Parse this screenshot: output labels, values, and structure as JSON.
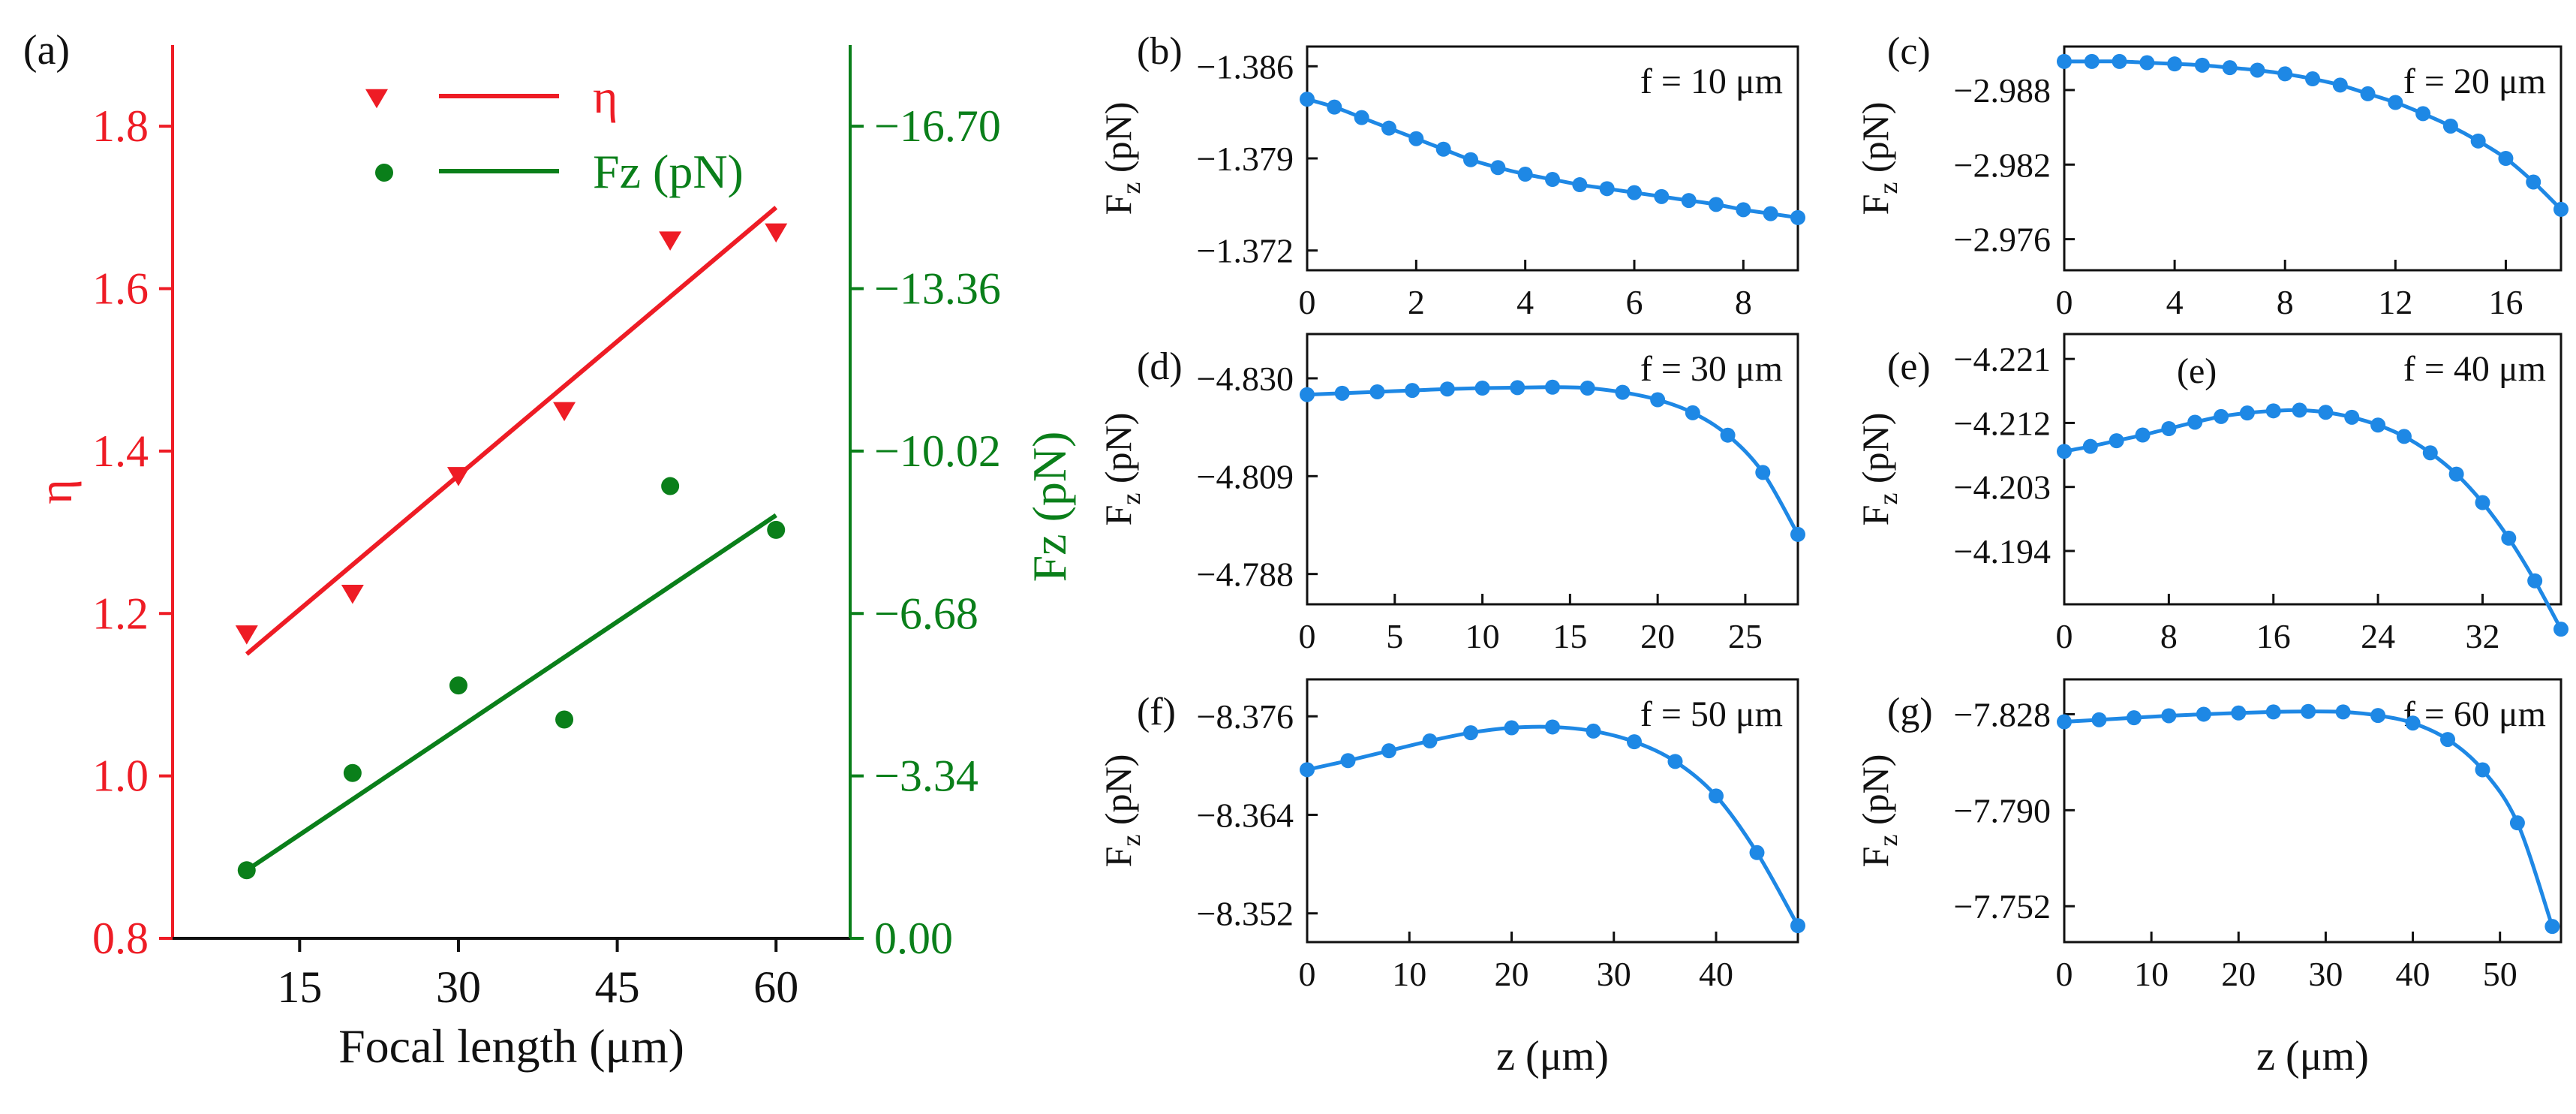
{
  "colors": {
    "red": "#ee1c25",
    "green": "#0a7f1a",
    "blue": "#1e88e5",
    "black": "#111111"
  },
  "chart_data": [
    {
      "id": "a",
      "type": "scatter",
      "panel_label": "(a)",
      "xlabel": "Focal length (μm)",
      "ylabel_left": "η",
      "ylabel_right": "Fz (pN)",
      "xlim": [
        3,
        67
      ],
      "ylim_left": [
        0.8,
        1.9
      ],
      "ylim_right": [
        0,
        18.37
      ],
      "xticks": [
        15,
        30,
        45,
        60
      ],
      "yticks_left": [
        0.8,
        1.0,
        1.2,
        1.4,
        1.6,
        1.8
      ],
      "yticks_left_labels": [
        "0.8",
        "1.0",
        "1.2",
        "1.4",
        "1.6",
        "1.8"
      ],
      "yticks_right": [
        0,
        3.34,
        6.68,
        10.02,
        13.36,
        16.7
      ],
      "yticks_right_labels": [
        "0.00",
        "-3.34",
        "-6.68",
        "-10.02",
        "-13.36",
        "-16.70"
      ],
      "series": [
        {
          "name": "η",
          "axis": "left",
          "marker": "triangle-down",
          "color": "red",
          "x": [
            10,
            20,
            30,
            40,
            50,
            60
          ],
          "y": [
            1.175,
            1.225,
            1.37,
            1.45,
            1.66,
            1.67
          ],
          "fit": {
            "x": [
              10,
              60
            ],
            "y": [
              1.15,
              1.7
            ]
          }
        },
        {
          "name": "Fz (pN)",
          "axis": "right",
          "marker": "circle",
          "color": "green",
          "x": [
            10,
            20,
            30,
            40,
            50,
            60
          ],
          "y": [
            1.4,
            3.4,
            5.2,
            4.5,
            9.3,
            8.4
          ],
          "fit": {
            "x": [
              10,
              60
            ],
            "y": [
              1.4,
              8.7
            ]
          }
        }
      ],
      "legend": [
        {
          "label": "η",
          "color": "red",
          "marker": "triangle-down"
        },
        {
          "label": "Fz (pN)",
          "color": "green",
          "marker": "circle"
        }
      ]
    },
    {
      "id": "b",
      "type": "line",
      "panel_label": "(b)",
      "annotation": "f = 10 μm",
      "xlim": [
        0,
        9
      ],
      "ylim": [
        -1.3875,
        -1.3705
      ],
      "xticks": [
        0,
        2,
        4,
        6,
        8
      ],
      "yticks": [
        -1.386,
        -1.379,
        -1.372
      ],
      "ytick_labels": [
        "-1.386",
        "-1.379",
        "-1.372"
      ],
      "ylabel": "Fz (pN)",
      "xlabel": "",
      "x": [
        0,
        0.5,
        1,
        1.5,
        2,
        2.5,
        3,
        3.5,
        4,
        4.5,
        5,
        5.5,
        6,
        6.5,
        7,
        7.5,
        8,
        8.5,
        9
      ],
      "y": [
        -1.3835,
        -1.3829,
        -1.3821,
        -1.3813,
        -1.3805,
        -1.3797,
        -1.3789,
        -1.3783,
        -1.3778,
        -1.3774,
        -1.377,
        -1.3767,
        -1.3764,
        -1.3761,
        -1.3758,
        -1.3755,
        -1.3751,
        -1.3748,
        -1.3745
      ]
    },
    {
      "id": "c",
      "type": "line",
      "panel_label": "(c)",
      "annotation": "f = 20 μm",
      "xlim": [
        0,
        18
      ],
      "ylim": [
        -2.9915,
        -2.9735
      ],
      "xticks": [
        0,
        4,
        8,
        12,
        16
      ],
      "yticks": [
        -2.988,
        -2.982,
        -2.976
      ],
      "ytick_labels": [
        "-2.988",
        "-2.982",
        "-2.976"
      ],
      "ylabel": "Fz (pN)",
      "xlabel": "",
      "x": [
        0,
        1,
        2,
        3,
        4,
        5,
        6,
        7,
        8,
        9,
        10,
        11,
        12,
        13,
        14,
        15,
        16,
        17,
        18
      ],
      "y": [
        -2.9903,
        -2.9903,
        -2.9903,
        -2.9902,
        -2.9901,
        -2.99,
        -2.9898,
        -2.9896,
        -2.9893,
        -2.9889,
        -2.9884,
        -2.9877,
        -2.987,
        -2.9861,
        -2.9851,
        -2.9839,
        -2.9825,
        -2.9806,
        -2.9784
      ]
    },
    {
      "id": "d",
      "type": "line",
      "panel_label": "(d)",
      "annotation": "f = 30 μm",
      "xlim": [
        0,
        28
      ],
      "ylim": [
        -4.8395,
        -4.7815
      ],
      "xticks": [
        0,
        5,
        10,
        15,
        20,
        25
      ],
      "yticks": [
        -4.83,
        -4.809,
        -4.788
      ],
      "ytick_labels": [
        "-4.830",
        "-4.809",
        "-4.788"
      ],
      "ylabel": "Fz (pN)",
      "xlabel": "",
      "x": [
        0,
        2,
        4,
        6,
        8,
        10,
        12,
        14,
        16,
        18,
        20,
        22,
        24,
        26,
        28
      ],
      "y": [
        -4.8265,
        -4.8268,
        -4.8271,
        -4.8274,
        -4.8277,
        -4.8279,
        -4.828,
        -4.8281,
        -4.8279,
        -4.827,
        -4.8254,
        -4.8226,
        -4.8178,
        -4.8098,
        -4.7965
      ]
    },
    {
      "id": "e",
      "type": "line",
      "panel_label": "(e)",
      "annotation": "f = 40 μm",
      "inner_label": "(e)",
      "xlim": [
        0,
        38
      ],
      "ylim": [
        -4.2245,
        -4.1865
      ],
      "xticks": [
        0,
        8,
        16,
        24,
        32
      ],
      "yticks": [
        -4.221,
        -4.212,
        -4.203,
        -4.194
      ],
      "ytick_labels": [
        "-4.221",
        "-4.212",
        "-4.203",
        "-4.194"
      ],
      "ylabel": "Fz (pN)",
      "xlabel": "",
      "x": [
        0,
        2,
        4,
        6,
        8,
        10,
        12,
        14,
        16,
        18,
        20,
        22,
        24,
        26,
        28,
        30,
        32,
        34,
        36,
        38
      ],
      "y": [
        -4.208,
        -4.2087,
        -4.2095,
        -4.2103,
        -4.2112,
        -4.2121,
        -4.2129,
        -4.2134,
        -4.2137,
        -4.2138,
        -4.2135,
        -4.2128,
        -4.2117,
        -4.2101,
        -4.2078,
        -4.2048,
        -4.2008,
        -4.1958,
        -4.1898,
        -4.183
      ]
    },
    {
      "id": "f",
      "type": "line",
      "panel_label": "(f)",
      "annotation": "f = 50 μm",
      "xlim": [
        0,
        48
      ],
      "ylim": [
        -8.3805,
        -8.3485
      ],
      "xticks": [
        0,
        10,
        20,
        30,
        40
      ],
      "yticks": [
        -8.376,
        -8.364,
        -8.352
      ],
      "ytick_labels": [
        "-8.376",
        "-8.364",
        "-8.352"
      ],
      "ylabel": "Fz (pN)",
      "xlabel": "z (μm)",
      "x": [
        0,
        4,
        8,
        12,
        16,
        20,
        24,
        28,
        32,
        36,
        40,
        44,
        48
      ],
      "y": [
        -8.3695,
        -8.3706,
        -8.3718,
        -8.373,
        -8.374,
        -8.3746,
        -8.3747,
        -8.3742,
        -8.3729,
        -8.3705,
        -8.3663,
        -8.3594,
        -8.3505
      ]
    },
    {
      "id": "g",
      "type": "line",
      "panel_label": "(g)",
      "annotation": "f = 60 μm",
      "xlim": [
        0,
        57
      ],
      "ylim": [
        -7.8418,
        -7.7378
      ],
      "xticks": [
        0,
        10,
        20,
        30,
        40,
        50
      ],
      "yticks": [
        -7.828,
        -7.79,
        -7.752
      ],
      "ytick_labels": [
        "-7.828",
        "-7.790",
        "-7.752"
      ],
      "ylabel": "Fz (pN)",
      "xlabel": "z (μm)",
      "x": [
        0,
        4,
        8,
        12,
        16,
        20,
        24,
        28,
        32,
        36,
        40,
        44,
        48,
        52,
        56
      ],
      "y": [
        -7.825,
        -7.8258,
        -7.8266,
        -7.8274,
        -7.828,
        -7.8285,
        -7.8289,
        -7.8291,
        -7.8289,
        -7.8275,
        -7.8245,
        -7.818,
        -7.806,
        -7.785,
        -7.744
      ]
    }
  ]
}
